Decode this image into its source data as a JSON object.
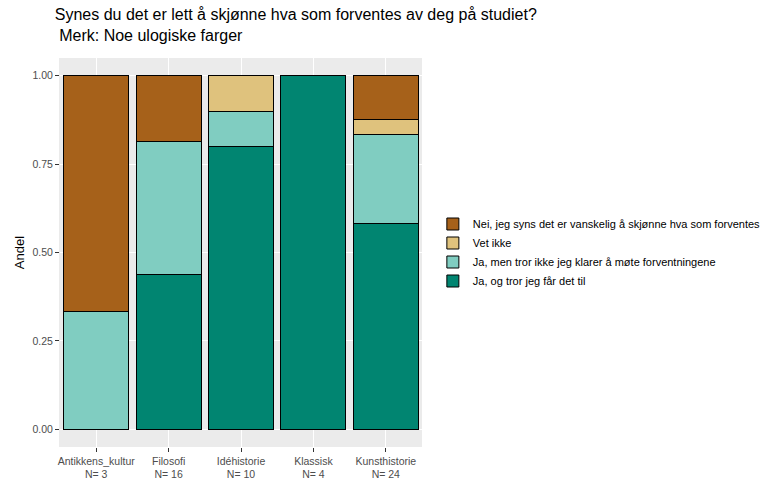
{
  "chart_data": {
    "type": "bar",
    "title": "Synes du det er lett å skjønne hva som forventes av deg på studiet?\n Merk: Noe ulogiske farger",
    "y_label": "Andel",
    "categories": [
      "Antikkens_kultur\nN= 3",
      "Filosofi\nN= 16",
      "Idéhistorie\nN= 10",
      "Klassisk\nN= 4",
      "Kunsthistorie\nN= 24"
    ],
    "series": [
      {
        "name": "Ja, og tror jeg får det til",
        "color": "#018571",
        "values": [
          0,
          0.4375,
          0.8,
          1.0,
          0.5833
        ]
      },
      {
        "name": "Ja, men tror ikke jeg klarer å møte forventningene",
        "color": "#80cdc1",
        "values": [
          0.3333,
          0.375,
          0.1,
          0,
          0.25
        ]
      },
      {
        "name": "Vet ikke",
        "color": "#dfc27d",
        "values": [
          0,
          0,
          0.1,
          0,
          0.0417
        ]
      },
      {
        "name": "Nei, jeg syns det er vanskelig å skjønne hva som forventes",
        "color": "#a6611a",
        "values": [
          0.6667,
          0.1875,
          0,
          0,
          0.125
        ]
      }
    ],
    "stacked": true,
    "ylim": [
      -0.05,
      1.05
    ],
    "yticks": [
      {
        "value": 0,
        "label": "0.00"
      },
      {
        "value": 0.25,
        "label": "0.25"
      },
      {
        "value": 0.5,
        "label": "0.50"
      },
      {
        "value": 0.75,
        "label": "0.75"
      },
      {
        "value": 1,
        "label": "1.00"
      }
    ],
    "grid": true,
    "legend": "right"
  }
}
